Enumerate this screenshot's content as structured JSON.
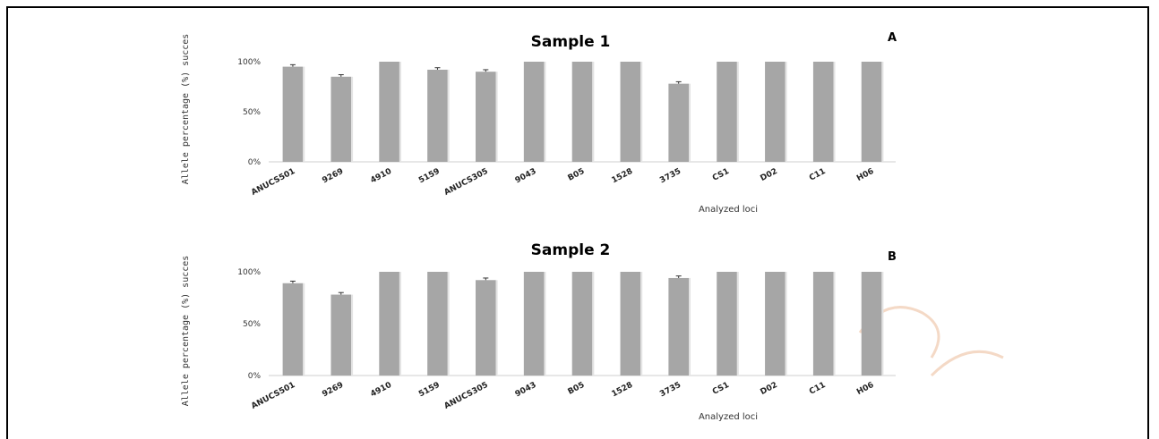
{
  "chart_data": [
    {
      "type": "bar",
      "title": "Sample 1",
      "panel_label": "A",
      "xlabel": "Analyzed loci",
      "ylabel": "Allele percentage (%) succes",
      "yticks": [
        "0%",
        "50%",
        "100%"
      ],
      "ylim": [
        0,
        100
      ],
      "categories": [
        "ANUCS501",
        "9269",
        "4910",
        "5159",
        "ANUCS305",
        "9043",
        "B05",
        "1528",
        "3735",
        "CS1",
        "D02",
        "C11",
        "H06"
      ],
      "values": [
        95,
        85,
        100,
        92,
        90,
        100,
        100,
        100,
        78,
        100,
        100,
        100,
        100
      ],
      "error": [
        2,
        2,
        0,
        2,
        2,
        0,
        0,
        0,
        2,
        0,
        0,
        0,
        0
      ],
      "color": "#a6a6a6"
    },
    {
      "type": "bar",
      "title": "Sample 2",
      "panel_label": "B",
      "xlabel": "Analyzed loci",
      "ylabel": "Allele percentage (%) succes",
      "yticks": [
        "0%",
        "50%",
        "100%"
      ],
      "ylim": [
        0,
        100
      ],
      "categories": [
        "ANUCS501",
        "9269",
        "4910",
        "5159",
        "ANUCS305",
        "9043",
        "B05",
        "1528",
        "3735",
        "CS1",
        "D02",
        "C11",
        "H06"
      ],
      "values": [
        89,
        78,
        100,
        100,
        92,
        100,
        100,
        100,
        94,
        100,
        100,
        100,
        100
      ],
      "error": [
        2,
        2,
        0,
        0,
        2,
        0,
        0,
        0,
        2,
        0,
        0,
        0,
        0
      ],
      "color": "#a6a6a6"
    }
  ]
}
